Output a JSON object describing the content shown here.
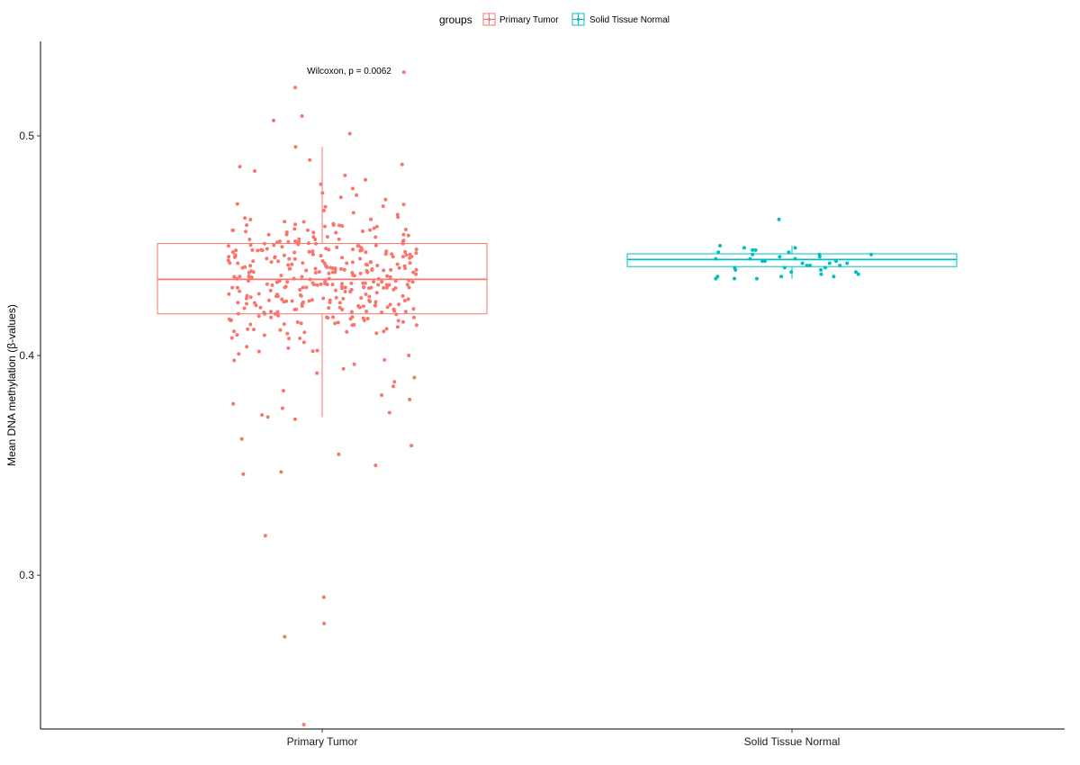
{
  "chart_data": {
    "type": "boxplot",
    "title": "",
    "xlabel": "",
    "ylabel": "Mean DNA methylation (β-values)",
    "ylim": [
      0.23,
      0.543
    ],
    "yticks": [
      0.3,
      0.4,
      0.5
    ],
    "ytick_labels": [
      "0.3",
      "0.4",
      "0.5"
    ],
    "categories": [
      "Primary Tumor",
      "Solid Tissue Normal"
    ],
    "legend": {
      "title": "groups",
      "position": "top",
      "entries": [
        "Primary Tumor",
        "Solid Tissue Normal"
      ]
    },
    "annotation": "Wilcoxon, p = 0.0062",
    "grid": false,
    "series": [
      {
        "name": "Primary Tumor",
        "color": "#F8766D",
        "box": {
          "whisker_low": 0.372,
          "q1": 0.419,
          "median": 0.4347,
          "q3": 0.451,
          "whisker_high": 0.495
        },
        "n_points": 400,
        "points": [
          0.529,
          0.522,
          0.507,
          0.509,
          0.501,
          0.495,
          0.489,
          0.487,
          0.486,
          0.484,
          0.482,
          0.48,
          0.478,
          0.476,
          0.474,
          0.473,
          0.472,
          0.471,
          0.469,
          0.468,
          0.466,
          0.465,
          0.463,
          0.462,
          0.461,
          0.46,
          0.458,
          0.457,
          0.456,
          0.455,
          0.454,
          0.453,
          0.452,
          0.451,
          0.45,
          0.449,
          0.448,
          0.447,
          0.446,
          0.445,
          0.444,
          0.443,
          0.442,
          0.441,
          0.44,
          0.439,
          0.438,
          0.437,
          0.436,
          0.435,
          0.434,
          0.433,
          0.432,
          0.431,
          0.43,
          0.429,
          0.428,
          0.427,
          0.426,
          0.425,
          0.424,
          0.423,
          0.422,
          0.421,
          0.42,
          0.419,
          0.418,
          0.417,
          0.416,
          0.415,
          0.414,
          0.413,
          0.412,
          0.411,
          0.41,
          0.408,
          0.406,
          0.404,
          0.402,
          0.4,
          0.398,
          0.396,
          0.394,
          0.392,
          0.39,
          0.388,
          0.386,
          0.384,
          0.382,
          0.38,
          0.378,
          0.376,
          0.374,
          0.373,
          0.372,
          0.371,
          0.362,
          0.359,
          0.355,
          0.35,
          0.347,
          0.346,
          0.318,
          0.29,
          0.278,
          0.272,
          0.232
        ]
      },
      {
        "name": "Solid Tissue Normal",
        "color": "#00BFC4",
        "box": {
          "whisker_low": 0.435,
          "q1": 0.4405,
          "median": 0.4437,
          "q3": 0.4463,
          "whisker_high": 0.45
        },
        "n_points": 40,
        "points": [
          0.462,
          0.45,
          0.449,
          0.449,
          0.448,
          0.448,
          0.447,
          0.447,
          0.446,
          0.446,
          0.446,
          0.445,
          0.445,
          0.444,
          0.444,
          0.444,
          0.443,
          0.443,
          0.443,
          0.442,
          0.442,
          0.442,
          0.441,
          0.441,
          0.441,
          0.44,
          0.44,
          0.44,
          0.439,
          0.439,
          0.438,
          0.438,
          0.437,
          0.437,
          0.436,
          0.436,
          0.436,
          0.435,
          0.435,
          0.435
        ]
      }
    ]
  }
}
